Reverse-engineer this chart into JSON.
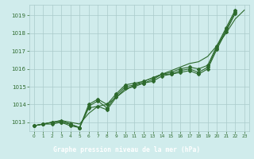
{
  "title": "Graphe pression niveau de la mer (hPa)",
  "x": [
    0,
    1,
    2,
    3,
    4,
    5,
    6,
    7,
    8,
    9,
    10,
    11,
    12,
    13,
    14,
    15,
    16,
    17,
    18,
    19,
    20,
    21,
    22,
    23
  ],
  "line1": [
    1012.8,
    1012.9,
    1012.9,
    1013.0,
    1012.9,
    1012.7,
    1013.9,
    1014.2,
    1013.8,
    1014.5,
    1015.0,
    1015.1,
    1015.2,
    1015.4,
    1015.7,
    1015.7,
    1015.9,
    1016.0,
    1015.8,
    1016.1,
    1017.2,
    1018.2,
    1019.2,
    null
  ],
  "line2": [
    1012.8,
    1012.9,
    1013.0,
    1013.1,
    1012.9,
    1012.7,
    1014.0,
    1014.3,
    1014.0,
    1014.6,
    1015.1,
    1015.2,
    1015.3,
    1015.5,
    1015.7,
    1015.8,
    1016.0,
    1016.1,
    1016.0,
    1016.2,
    1017.3,
    1018.3,
    1019.3,
    null
  ],
  "line3": [
    1012.8,
    1012.9,
    1013.0,
    1013.0,
    1012.8,
    1012.7,
    1013.8,
    1013.9,
    1013.7,
    1014.4,
    1014.9,
    1015.0,
    1015.2,
    1015.3,
    1015.6,
    1015.7,
    1015.8,
    1015.9,
    1015.7,
    1016.0,
    1017.1,
    1018.1,
    1019.1,
    null
  ],
  "smooth_line": [
    1012.8,
    1012.9,
    1013.0,
    1013.1,
    1013.0,
    1012.9,
    1013.5,
    1013.9,
    1014.0,
    1014.4,
    1014.8,
    1015.1,
    1015.3,
    1015.5,
    1015.7,
    1015.9,
    1016.1,
    1016.3,
    1016.4,
    1016.7,
    1017.3,
    1018.0,
    1018.8,
    1019.3
  ],
  "ylim": [
    1012.5,
    1019.6
  ],
  "yticks": [
    1013,
    1014,
    1015,
    1016,
    1017,
    1018,
    1019
  ],
  "xticks": [
    0,
    1,
    2,
    3,
    4,
    5,
    6,
    7,
    8,
    9,
    10,
    11,
    12,
    13,
    14,
    15,
    16,
    17,
    18,
    19,
    20,
    21,
    22,
    23
  ],
  "line_color": "#2d6a2d",
  "bg_color": "#d0ecec",
  "grid_color": "#aacaca",
  "title_color": "white",
  "title_bg": "#2d6a2d"
}
